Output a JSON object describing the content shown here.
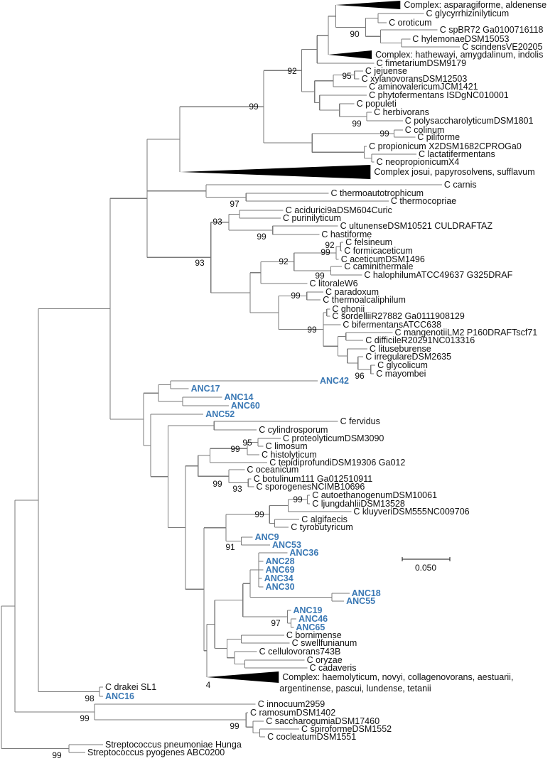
{
  "taxa": [
    "Complex: asparagiforme, aldenense",
    "C glycyrrhizinilyticum",
    "C oroticum",
    "C spBR72 Ga0100716118",
    "C hylemonaeDSM15053",
    "C scindensVE20205",
    "Complex: hathewayi, amygdalinum, indolis",
    "C fimetariumDSM9179",
    "C jejuense",
    "C xylanovoransDSM12503",
    "C aminovalericumJCM1421",
    "C phytofermentans ISDgNC010001",
    "C populeti",
    "C herbivorans",
    "C polysaccharolyticumDSM1801",
    "C colinum",
    "C piliforme",
    "C propionicum X2DSM1682CPROGa0",
    "C lactatifermentans",
    "C neopropionicumX4",
    "Complex josui, papyrosolvens, sufflavum",
    "C carnis",
    "C thermoautotrophicum",
    "C thermocopriae",
    "C acidurici9aDSM604Curic",
    "C purinilyticum",
    "C ultunenseDSM10521 CULDRAFTAZ",
    "C hastiforme",
    "C felsineum",
    "C formicaceticum",
    "C aceticumDSM1496",
    "C caminithermale",
    "C halophilumATCC49637 G325DRAF",
    "C litoraleW6",
    "C paradoxum",
    "C thermoalcaliphilum",
    "C ghonii",
    "C sordelliiR27882 Ga0111908129",
    "C bifermentansATCC638",
    "C mangenotiiLM2 P160DRAFTscf71",
    "C difficileR20291NC013316",
    "C lituseburense",
    "C irregulareDSM2635",
    "C glycolicum",
    "C mayombei",
    "ANC42",
    "ANC17",
    "ANC14",
    "ANC60",
    "ANC52",
    "C fervidus",
    "C cylindrosporum",
    "C proteolyticumDSM3090",
    "C limosum",
    "C histolyticum",
    "C tepidiprofundiDSM19306 Ga012",
    "C oceanicum",
    "C botulinum111 Ga012510911",
    "C sporogenesNCIMB10696",
    "C autoethanogenumDSM10061",
    "C ljungdahliiDSM13528",
    "C kluyveriDSM555NC009706",
    "C algifaecis",
    "C tyrobutyricum",
    "ANC9",
    "ANC53",
    "ANC36",
    "ANC28",
    "ANC69",
    "ANC34",
    "ANC30",
    "ANC18",
    "ANC55",
    "ANC19",
    "ANC46",
    "ANC65",
    "C bornimense",
    "C swellfunianum",
    "C cellulovorans743B",
    "C oryzae",
    "C cadaveris",
    "Complex: haemolyticum, novyi, collagenovorans, aestuarii,",
    "argentinense, pascui, lundense, tetanii",
    "C drakei SL1",
    "ANC16",
    "C innocuum2959",
    "C ramosumDSM1402",
    "C saccharogumiaDSM17460",
    "C spiroformeDSM1552",
    "C cocleatumDSM1551",
    "Streptococcus pneumoniae Hunga",
    "Streptococcus pyogenes ABC0200"
  ],
  "bootstrap": [
    "90",
    "92",
    "99",
    "95",
    "99",
    "99",
    "97",
    "93",
    "99",
    "92",
    "99",
    "92",
    "99",
    "93",
    "99",
    "99",
    "96",
    "95",
    "99",
    "99",
    "93",
    "99",
    "99",
    "91",
    "97",
    "4",
    "98",
    "99",
    "99",
    "99"
  ],
  "scale_bar": {
    "label": "0.050"
  },
  "colors": {
    "ancestral": "#3a78b4",
    "branch": "#7a7a7a",
    "collapsed_clade": "#000000",
    "text": "#111111"
  }
}
